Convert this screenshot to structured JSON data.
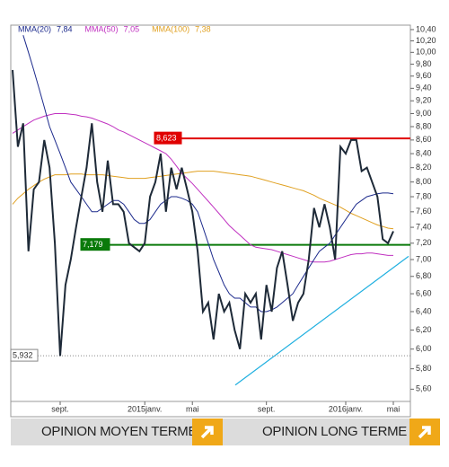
{
  "chart_data": {
    "type": "line",
    "log_scale": true,
    "categories": [
      null,
      null,
      null,
      null,
      null,
      null,
      null,
      null,
      null,
      "sept.",
      null,
      null,
      null,
      null,
      null,
      null,
      null,
      null,
      null,
      null,
      null,
      null,
      null,
      null,
      null,
      "2015janv.",
      null,
      null,
      null,
      null,
      null,
      null,
      null,
      null,
      "mai",
      null,
      null,
      null,
      null,
      null,
      null,
      null,
      null,
      null,
      null,
      null,
      null,
      null,
      "sept.",
      null,
      null,
      null,
      null,
      null,
      null,
      null,
      null,
      null,
      null,
      null,
      null,
      null,
      null,
      "2016janv.",
      null,
      null,
      null,
      null,
      null,
      null,
      null,
      null,
      "mai"
    ],
    "series": [
      {
        "color": "#1e2a38",
        "values": [
          9.7,
          8.5,
          8.85,
          7.1,
          7.9,
          8.0,
          8.6,
          8.2,
          7.2,
          5.93,
          6.7,
          7.0,
          7.4,
          7.8,
          8.2,
          8.85,
          8.0,
          7.6,
          8.3,
          7.7,
          7.7,
          7.6,
          7.2,
          7.15,
          7.1,
          7.2,
          7.8,
          8.0,
          8.4,
          7.6,
          8.2,
          7.9,
          8.2,
          7.9,
          7.6,
          7.1,
          6.4,
          6.5,
          6.1,
          6.6,
          6.4,
          6.5,
          6.2,
          6.0,
          6.6,
          6.5,
          6.6,
          6.1,
          6.7,
          6.4,
          6.9,
          7.1,
          6.7,
          6.3,
          6.5,
          6.6,
          7.0,
          7.65,
          7.4,
          7.7,
          7.4,
          7.0,
          8.5,
          8.4,
          8.6,
          8.6,
          8.15,
          8.2,
          8.0,
          7.8,
          7.25,
          7.2,
          7.35
        ]
      },
      {
        "name": "MMA(20)",
        "color": "#1c2a8c",
        "legend_value": {
          "value": 7.84,
          "label": "7,84"
        },
        "values": [
          null,
          null,
          10.3,
          10.0,
          9.7,
          9.4,
          9.1,
          8.8,
          8.6,
          8.4,
          8.2,
          8.0,
          7.9,
          7.8,
          7.7,
          7.6,
          7.6,
          7.65,
          7.7,
          7.75,
          7.75,
          7.7,
          7.6,
          7.5,
          7.45,
          7.45,
          7.5,
          7.6,
          7.7,
          7.75,
          7.8,
          7.8,
          7.78,
          7.75,
          7.7,
          7.6,
          7.4,
          7.2,
          7.0,
          6.85,
          6.7,
          6.6,
          6.55,
          6.55,
          6.5,
          6.45,
          6.45,
          6.4,
          6.4,
          6.42,
          6.45,
          6.5,
          6.55,
          6.6,
          6.7,
          6.8,
          6.9,
          7.0,
          7.1,
          7.15,
          7.2,
          7.3,
          7.4,
          7.5,
          7.6,
          7.7,
          7.75,
          7.8,
          7.82,
          7.84,
          7.85,
          7.85,
          7.84
        ]
      },
      {
        "name": "MMA(50)",
        "color": "#c030c0",
        "legend_value": {
          "value": 7.05,
          "label": "7,05"
        },
        "values": [
          8.7,
          8.75,
          8.8,
          8.85,
          8.9,
          8.93,
          8.96,
          8.98,
          9.0,
          9.0,
          9.0,
          8.99,
          8.98,
          8.96,
          8.95,
          8.93,
          8.9,
          8.87,
          8.84,
          8.8,
          8.75,
          8.72,
          8.68,
          8.64,
          8.6,
          8.56,
          8.52,
          8.48,
          8.44,
          8.4,
          8.32,
          8.22,
          8.12,
          8.05,
          7.98,
          7.9,
          7.82,
          7.74,
          7.66,
          7.58,
          7.5,
          7.42,
          7.36,
          7.3,
          7.24,
          7.18,
          7.15,
          7.14,
          7.13,
          7.12,
          7.1,
          7.08,
          7.06,
          7.04,
          7.02,
          7.0,
          6.98,
          6.97,
          6.97,
          6.97,
          6.98,
          7.0,
          7.02,
          7.04,
          7.06,
          7.07,
          7.07,
          7.08,
          7.08,
          7.07,
          7.06,
          7.05,
          7.05
        ]
      },
      {
        "name": "MMA(100)",
        "color": "#e0a020",
        "legend_value": {
          "value": 7.38,
          "label": "7,38"
        },
        "values": [
          7.7,
          7.78,
          7.84,
          7.9,
          7.95,
          8.0,
          8.04,
          8.07,
          8.1,
          8.1,
          8.1,
          8.11,
          8.11,
          8.11,
          8.1,
          8.1,
          8.1,
          8.1,
          8.09,
          8.08,
          8.07,
          8.06,
          8.05,
          8.05,
          8.05,
          8.05,
          8.06,
          8.07,
          8.08,
          8.09,
          8.1,
          8.11,
          8.12,
          8.13,
          8.14,
          8.15,
          8.15,
          8.15,
          8.15,
          8.14,
          8.13,
          8.12,
          8.11,
          8.1,
          8.09,
          8.08,
          8.06,
          8.04,
          8.02,
          8.0,
          7.98,
          7.96,
          7.94,
          7.92,
          7.9,
          7.88,
          7.85,
          7.82,
          7.78,
          7.75,
          7.72,
          7.69,
          7.66,
          7.62,
          7.58,
          7.55,
          7.52,
          7.49,
          7.46,
          7.43,
          7.41,
          7.39,
          7.38
        ]
      }
    ],
    "levels": [
      {
        "value": 8.623,
        "label": "8,623",
        "color": "#e00000"
      },
      {
        "value": 7.179,
        "label": "7,179",
        "color": "#0a7a0a"
      },
      {
        "value": 5.932,
        "label": "5,932",
        "color": "#888888"
      }
    ],
    "trendline": {
      "color": "#20b0e0",
      "values": [
        5.64,
        7.04
      ]
    },
    "ylim": [
      5.5,
      10.48
    ],
    "yticks": [
      {
        "value": 5.6,
        "label": "5,60"
      },
      {
        "value": 5.8,
        "label": "5,80"
      },
      {
        "value": 6.0,
        "label": "6,00"
      },
      {
        "value": 6.2,
        "label": "6,20"
      },
      {
        "value": 6.4,
        "label": "6,40"
      },
      {
        "value": 6.6,
        "label": "6,60"
      },
      {
        "value": 6.8,
        "label": "6,80"
      },
      {
        "value": 7.0,
        "label": "7,00"
      },
      {
        "value": 7.2,
        "label": "7,20"
      },
      {
        "value": 7.4,
        "label": "7,40"
      },
      {
        "value": 7.6,
        "label": "7,60"
      },
      {
        "value": 7.8,
        "label": "7,80"
      },
      {
        "value": 8.0,
        "label": "8,00"
      },
      {
        "value": 8.2,
        "label": "8,20"
      },
      {
        "value": 8.4,
        "label": "8,40"
      },
      {
        "value": 8.6,
        "label": "8,60"
      },
      {
        "value": 8.8,
        "label": "8,80"
      },
      {
        "value": 9.0,
        "label": "9,00"
      },
      {
        "value": 9.2,
        "label": "9,20"
      },
      {
        "value": 9.4,
        "label": "9,40"
      },
      {
        "value": 9.6,
        "label": "9,60"
      },
      {
        "value": 9.8,
        "label": "9,80"
      },
      {
        "value": 10.0,
        "label": "10,00"
      },
      {
        "value": 10.2,
        "label": "10,20"
      },
      {
        "value": 10.4,
        "label": "10,40"
      }
    ]
  },
  "buttons": [
    "OPINION MOYEN TERME",
    "OPINION LONG TERME"
  ]
}
